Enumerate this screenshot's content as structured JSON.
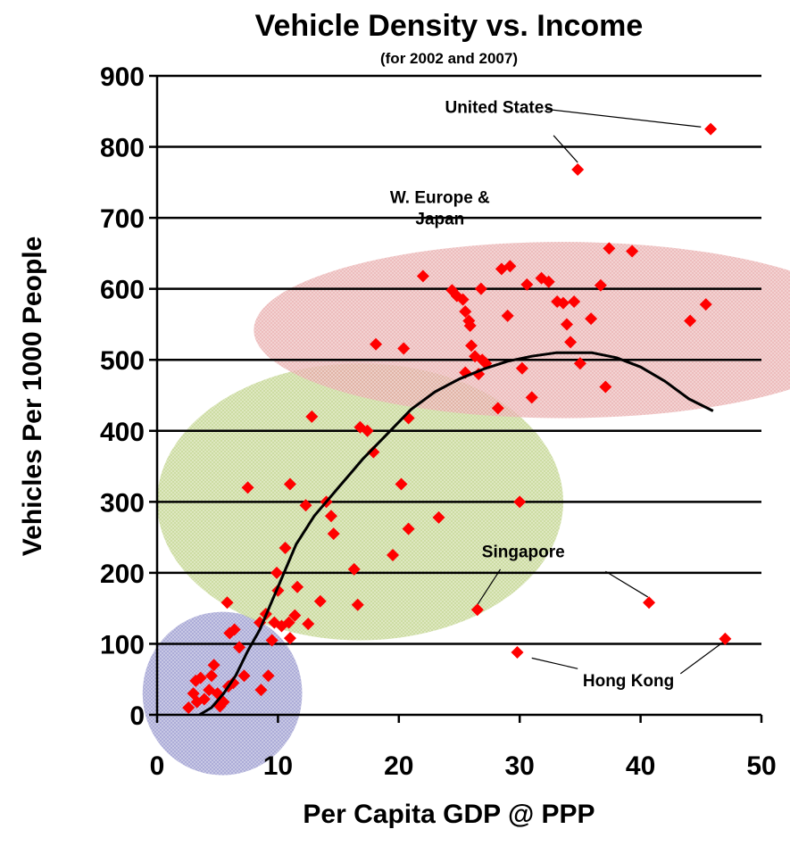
{
  "chart_data": {
    "type": "scatter",
    "title": "Vehicle Density vs. Income",
    "subtitle": "(for 2002 and 2007)",
    "xlabel": "Per Capita GDP @ PPP",
    "ylabel": "Vehicles Per 1000 People",
    "xlim": [
      0,
      50
    ],
    "ylim": [
      0,
      900
    ],
    "x_ticks": [
      0,
      10,
      20,
      30,
      40,
      50
    ],
    "y_ticks": [
      0,
      100,
      200,
      300,
      400,
      500,
      600,
      700,
      800,
      900
    ],
    "grid": "horizontal",
    "legend": "none",
    "marker_color": "#ff0000",
    "trend_color": "#000000",
    "points": [
      [
        2.6,
        10
      ],
      [
        3.0,
        30
      ],
      [
        3.3,
        18
      ],
      [
        3.2,
        48
      ],
      [
        3.6,
        52
      ],
      [
        3.9,
        22
      ],
      [
        4.3,
        35
      ],
      [
        4.5,
        55
      ],
      [
        4.7,
        70
      ],
      [
        5.0,
        30
      ],
      [
        5.2,
        12
      ],
      [
        5.5,
        18
      ],
      [
        5.9,
        40
      ],
      [
        6.3,
        45
      ],
      [
        6.8,
        95
      ],
      [
        7.2,
        55
      ],
      [
        8.6,
        35
      ],
      [
        9.2,
        55
      ],
      [
        6.0,
        115
      ],
      [
        6.4,
        120
      ],
      [
        5.8,
        158
      ],
      [
        7.5,
        320
      ],
      [
        8.5,
        130
      ],
      [
        9.0,
        142
      ],
      [
        9.5,
        105
      ],
      [
        9.7,
        130
      ],
      [
        9.9,
        200
      ],
      [
        10.0,
        175
      ],
      [
        10.3,
        125
      ],
      [
        10.6,
        235
      ],
      [
        10.9,
        130
      ],
      [
        11.0,
        325
      ],
      [
        11.4,
        140
      ],
      [
        11.6,
        180
      ],
      [
        11.0,
        108
      ],
      [
        12.3,
        295
      ],
      [
        12.8,
        420
      ],
      [
        12.5,
        128
      ],
      [
        13.5,
        160
      ],
      [
        14.0,
        300
      ],
      [
        14.4,
        280
      ],
      [
        14.6,
        255
      ],
      [
        16.3,
        205
      ],
      [
        16.6,
        155
      ],
      [
        16.8,
        405
      ],
      [
        17.4,
        400
      ],
      [
        17.9,
        370
      ],
      [
        19.5,
        225
      ],
      [
        20.2,
        325
      ],
      [
        20.8,
        262
      ],
      [
        20.8,
        418
      ],
      [
        23.3,
        278
      ],
      [
        18.1,
        522
      ],
      [
        20.4,
        516
      ],
      [
        22.0,
        618
      ],
      [
        24.4,
        598
      ],
      [
        24.8,
        590
      ],
      [
        25.3,
        585
      ],
      [
        25.5,
        482
      ],
      [
        25.5,
        568
      ],
      [
        25.8,
        555
      ],
      [
        25.9,
        548
      ],
      [
        26.0,
        520
      ],
      [
        26.3,
        505
      ],
      [
        26.6,
        480
      ],
      [
        26.8,
        600
      ],
      [
        26.9,
        500
      ],
      [
        27.2,
        495
      ],
      [
        28.2,
        432
      ],
      [
        28.5,
        628
      ],
      [
        29.2,
        632
      ],
      [
        29.0,
        562
      ],
      [
        30.2,
        488
      ],
      [
        30.6,
        606
      ],
      [
        31.0,
        447
      ],
      [
        31.8,
        615
      ],
      [
        32.4,
        610
      ],
      [
        33.1,
        582
      ],
      [
        33.6,
        580
      ],
      [
        33.9,
        550
      ],
      [
        34.2,
        525
      ],
      [
        34.5,
        582
      ],
      [
        35.0,
        495
      ],
      [
        35.9,
        558
      ],
      [
        36.7,
        605
      ],
      [
        37.1,
        462
      ],
      [
        37.4,
        657
      ],
      [
        39.3,
        653
      ],
      [
        44.1,
        555
      ],
      [
        45.4,
        578
      ],
      [
        34.8,
        768
      ],
      [
        45.8,
        825
      ],
      [
        30.0,
        300
      ],
      [
        26.5,
        148
      ],
      [
        40.7,
        158
      ],
      [
        29.8,
        88
      ],
      [
        47.0,
        107
      ]
    ],
    "trend_line": [
      [
        3.5,
        0
      ],
      [
        4.5,
        10
      ],
      [
        5.5,
        30
      ],
      [
        6.5,
        55
      ],
      [
        7.5,
        90
      ],
      [
        8.5,
        120
      ],
      [
        9.5,
        160
      ],
      [
        10.5,
        200
      ],
      [
        11.5,
        240
      ],
      [
        13,
        280
      ],
      [
        15,
        320
      ],
      [
        17,
        360
      ],
      [
        19,
        395
      ],
      [
        21,
        430
      ],
      [
        23,
        455
      ],
      [
        25,
        473
      ],
      [
        27,
        487
      ],
      [
        29,
        498
      ],
      [
        31,
        505
      ],
      [
        33,
        510
      ],
      [
        36,
        510
      ],
      [
        38,
        503
      ],
      [
        40,
        490
      ],
      [
        42,
        470
      ],
      [
        44,
        445
      ],
      [
        46,
        428
      ]
    ],
    "clusters": [
      {
        "cx": 5.4,
        "cy": 30,
        "rx": 6.6,
        "ry": 115,
        "color": "#8c8cc8"
      },
      {
        "cx": 16.8,
        "cy": 300,
        "rx": 16.8,
        "ry": 195,
        "color": "#b9cf7f"
      },
      {
        "cx": 33.5,
        "cy": 542,
        "rx": 25.5,
        "ry": 124,
        "color": "#e6a3a3"
      }
    ],
    "annotations": [
      {
        "text": "United States",
        "x": 28.3,
        "y": 848,
        "pointers": [
          [
            [
              32.2,
              853
            ],
            [
              45.0,
              828
            ]
          ],
          [
            [
              32.8,
              816
            ],
            [
              34.8,
              778
            ]
          ]
        ]
      },
      {
        "text": "W. Europe &",
        "x": 23.4,
        "y": 721,
        "pointers": []
      },
      {
        "text": "Japan",
        "x": 23.4,
        "y": 691,
        "pointers": []
      },
      {
        "text": "Singapore",
        "x": 30.3,
        "y": 222,
        "pointers": [
          [
            [
              28.4,
              205
            ],
            [
              26.5,
              155
            ]
          ],
          [
            [
              37.1,
              202
            ],
            [
              40.6,
              166
            ]
          ]
        ]
      },
      {
        "text": "Hong Kong",
        "x": 39.0,
        "y": 40,
        "pointers": [
          [
            [
              31.0,
              80
            ],
            [
              34.8,
              65
            ]
          ],
          [
            [
              43.3,
              58
            ],
            [
              46.8,
              102
            ]
          ]
        ]
      }
    ]
  }
}
